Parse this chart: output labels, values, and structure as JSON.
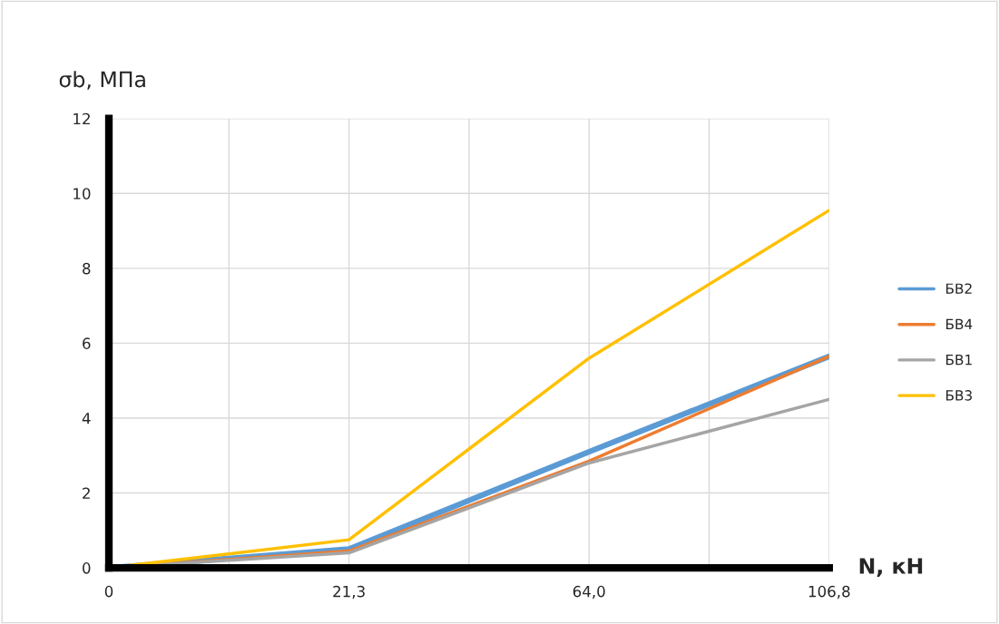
{
  "chart_data": {
    "type": "line",
    "ylabel": "σb, МПа",
    "xlabel": "N, кН",
    "categories": [
      "0",
      "21,3",
      "64,0",
      "106,8"
    ],
    "series": [
      {
        "name": "БВ2",
        "color": "#5b9bd5",
        "values": [
          0,
          0.5,
          3.1,
          5.65
        ]
      },
      {
        "name": "БВ4",
        "color": "#ed7d31",
        "values": [
          0,
          0.45,
          2.85,
          5.65
        ]
      },
      {
        "name": "БВ1",
        "color": "#a5a5a5",
        "values": [
          0,
          0.4,
          2.8,
          4.5
        ]
      },
      {
        "name": "БВ3",
        "color": "#ffc000",
        "values": [
          0,
          0.75,
          5.6,
          9.55
        ]
      }
    ],
    "ylim": [
      0,
      12
    ],
    "yticks": [
      0,
      2,
      4,
      6,
      8,
      10,
      12
    ],
    "grid": true,
    "legend": "right",
    "marker": "none",
    "line_style": "solid"
  }
}
